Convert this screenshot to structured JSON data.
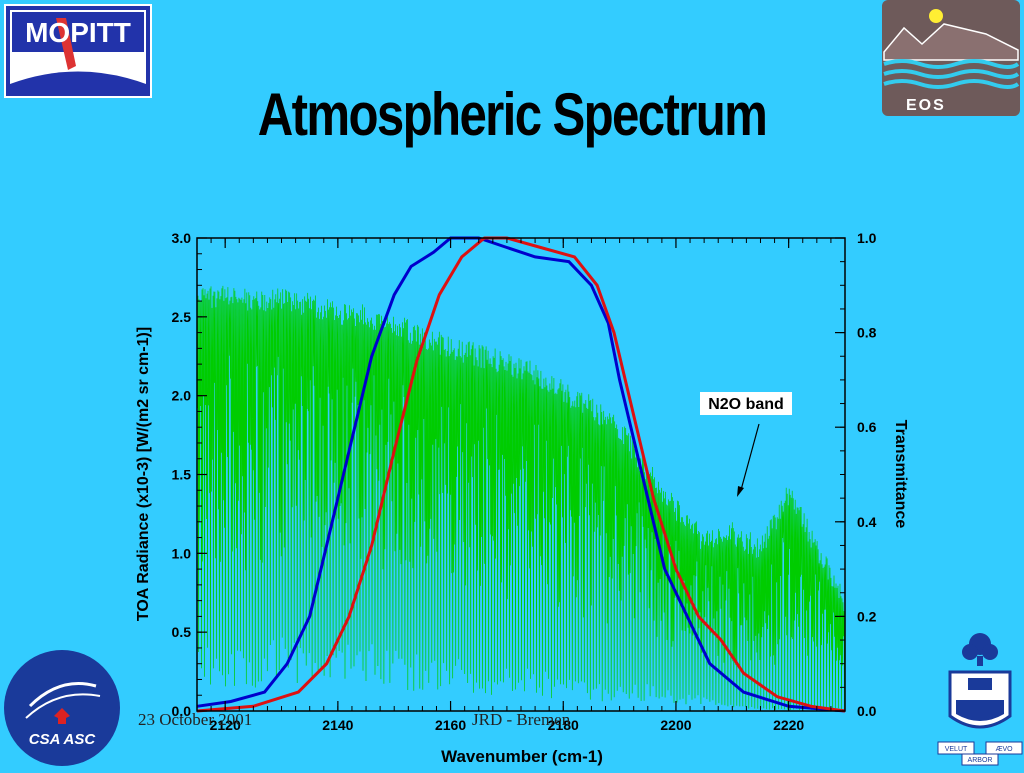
{
  "slide": {
    "title": "Atmospheric Spectrum",
    "footer_date": "23 October 2001",
    "footer_author": "JRD - Bremen"
  },
  "logos": {
    "top_left": "MOPITT",
    "top_right": "EOS",
    "bottom_left": "CSA ASC",
    "bottom_right_motto_left": "VELUT",
    "bottom_right_motto_right": "ÆVO",
    "bottom_right_motto_bottom": "ARBOR"
  },
  "colors": {
    "background": "#33ccff",
    "spectrum": "#00cc00",
    "blue_curve": "#0000cc",
    "red_curve": "#dd1111"
  },
  "chart_data": {
    "type": "line",
    "xlabel": "Wavenumber (cm-1)",
    "ylabel_left": "TOA Radiance (x10-3) [W/(m2 sr cm-1)]",
    "ylabel_right": "Transmittance",
    "xlim": [
      2115,
      2230
    ],
    "ylim_left": [
      0,
      3.0
    ],
    "ylim_right": [
      0,
      1.0
    ],
    "x_ticks": [
      "2120",
      "2140",
      "2160",
      "2180",
      "2200",
      "2220"
    ],
    "y_ticks_left": [
      "0.0",
      "0.5",
      "1.0",
      "1.5",
      "2.0",
      "2.5",
      "3.0"
    ],
    "y_ticks_right": [
      "0.0",
      "0.2",
      "0.4",
      "0.6",
      "0.8",
      "1.0"
    ],
    "annotation": "N2O band",
    "spectrum_envelope": {
      "x": [
        2115,
        2120,
        2125,
        2130,
        2135,
        2140,
        2145,
        2150,
        2155,
        2160,
        2165,
        2170,
        2175,
        2180,
        2185,
        2190,
        2195,
        2200,
        2205,
        2210,
        2215,
        2220,
        2225,
        2230
      ],
      "top": [
        2.7,
        2.7,
        2.68,
        2.68,
        2.65,
        2.6,
        2.58,
        2.52,
        2.45,
        2.38,
        2.33,
        2.28,
        2.22,
        2.1,
        2.0,
        1.85,
        1.6,
        1.35,
        1.15,
        1.2,
        1.1,
        1.45,
        1.1,
        0.75
      ],
      "bottom": [
        0.45,
        0.5,
        0.4,
        0.55,
        0.5,
        0.55,
        0.5,
        0.45,
        0.4,
        0.4,
        0.35,
        0.3,
        0.3,
        0.25,
        0.2,
        0.2,
        0.2,
        0.15,
        0.1,
        0.05,
        0.02,
        0.02,
        0.02,
        0.02
      ]
    },
    "series": [
      {
        "color": "#0000cc",
        "x": [
          2115,
          2121,
          2127,
          2131,
          2135,
          2138,
          2142,
          2146,
          2150,
          2153,
          2157,
          2160,
          2165,
          2170,
          2175,
          2181,
          2185,
          2188,
          2190,
          2194,
          2198,
          2202,
          2206,
          2212,
          2220,
          2230
        ],
        "y": [
          0.01,
          0.02,
          0.04,
          0.1,
          0.2,
          0.35,
          0.55,
          0.75,
          0.88,
          0.94,
          0.97,
          1.0,
          1.0,
          0.98,
          0.96,
          0.95,
          0.9,
          0.82,
          0.7,
          0.5,
          0.3,
          0.2,
          0.1,
          0.04,
          0.01,
          0.0
        ]
      },
      {
        "color": "#dd1111",
        "x": [
          2115,
          2125,
          2133,
          2138,
          2142,
          2146,
          2150,
          2154,
          2158,
          2162,
          2166,
          2170,
          2176,
          2182,
          2186,
          2189,
          2192,
          2196,
          2200,
          2204,
          2208,
          2212,
          2218,
          2224,
          2230
        ],
        "y": [
          0.0,
          0.01,
          0.04,
          0.1,
          0.2,
          0.35,
          0.55,
          0.74,
          0.88,
          0.96,
          1.0,
          1.0,
          0.98,
          0.96,
          0.9,
          0.8,
          0.65,
          0.45,
          0.3,
          0.2,
          0.15,
          0.08,
          0.03,
          0.01,
          0.0
        ]
      }
    ]
  }
}
